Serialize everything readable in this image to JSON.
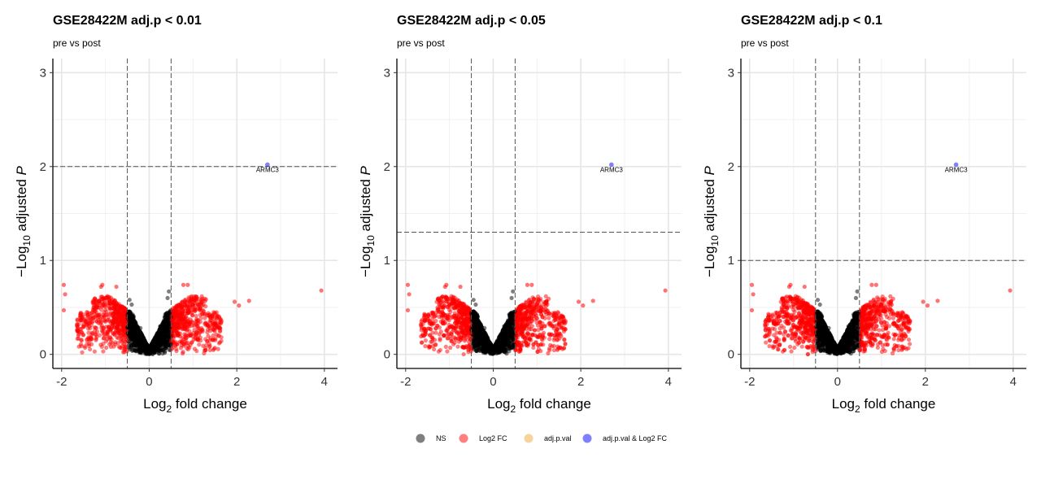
{
  "legend": {
    "items": [
      {
        "label": "NS",
        "color": "#000000"
      },
      {
        "label": "Log2 FC",
        "color": "#ff0000"
      },
      {
        "label": "adj.p.val",
        "color": "#f2a93b"
      },
      {
        "label": "adj.p.val & Log2 FC",
        "color": "#0000ff"
      }
    ]
  },
  "chart_data": [
    {
      "type": "scatter",
      "title": "GSE28422M adj.p < 0.01",
      "subtitle": "pre vs post",
      "xlabel": {
        "prefix": "Log",
        "sub": "2",
        "suffix": " fold change"
      },
      "ylabel": {
        "prefix": "−Log",
        "sub": "10",
        "suffix": " adjusted "
      },
      "ylabel_italic": "P",
      "xlim": [
        -2.2,
        4.3
      ],
      "ylim": [
        -0.15,
        3.15
      ],
      "xticks": [
        "-2",
        "0",
        "2",
        "4"
      ],
      "xtick_values": [
        -2,
        0,
        2,
        4
      ],
      "yticks": [
        "0",
        "1",
        "2",
        "3"
      ],
      "ytick_values": [
        0,
        1,
        2,
        3
      ],
      "fc_cutoff": 0.5,
      "p_cutoff_log10": 2,
      "grid": true,
      "labeled_points": [
        {
          "label": "ARMC3",
          "x": 2.7,
          "y": 2.02,
          "category": "adj.p.val & Log2 FC"
        }
      ],
      "outlier_points": [
        {
          "x": 3.93,
          "y": 0.68,
          "category": "Log2 FC"
        },
        {
          "x": -1.95,
          "y": 0.74,
          "category": "Log2 FC"
        },
        {
          "x": -1.92,
          "y": 0.64,
          "category": "Log2 FC"
        },
        {
          "x": -1.95,
          "y": 0.47,
          "category": "Log2 FC"
        },
        {
          "x": 2.28,
          "y": 0.57,
          "category": "Log2 FC"
        },
        {
          "x": -1.1,
          "y": 0.72,
          "category": "Log2 FC"
        },
        {
          "x": -1.07,
          "y": 0.74,
          "category": "Log2 FC"
        },
        {
          "x": -0.75,
          "y": 0.72,
          "category": "Log2 FC"
        },
        {
          "x": 0.78,
          "y": 0.74,
          "category": "Log2 FC"
        },
        {
          "x": 0.88,
          "y": 0.74,
          "category": "Log2 FC"
        },
        {
          "x": 1.95,
          "y": 0.56,
          "category": "Log2 FC"
        },
        {
          "x": 2.05,
          "y": 0.52,
          "category": "Log2 FC"
        }
      ]
    },
    {
      "type": "scatter",
      "title": "GSE28422M adj.p < 0.05",
      "subtitle": "pre vs post",
      "xlabel": {
        "prefix": "Log",
        "sub": "2",
        "suffix": " fold change"
      },
      "ylabel": {
        "prefix": "−Log",
        "sub": "10",
        "suffix": " adjusted "
      },
      "ylabel_italic": "P",
      "xlim": [
        -2.2,
        4.3
      ],
      "ylim": [
        -0.15,
        3.15
      ],
      "xticks": [
        "-2",
        "0",
        "2",
        "4"
      ],
      "xtick_values": [
        -2,
        0,
        2,
        4
      ],
      "yticks": [
        "0",
        "1",
        "2",
        "3"
      ],
      "ytick_values": [
        0,
        1,
        2,
        3
      ],
      "fc_cutoff": 0.5,
      "p_cutoff_log10": 1.301,
      "grid": true,
      "labeled_points": [
        {
          "label": "ARMC3",
          "x": 2.7,
          "y": 2.02,
          "category": "adj.p.val & Log2 FC"
        }
      ],
      "outlier_points": [
        {
          "x": 3.93,
          "y": 0.68,
          "category": "Log2 FC"
        },
        {
          "x": -1.95,
          "y": 0.74,
          "category": "Log2 FC"
        },
        {
          "x": -1.92,
          "y": 0.64,
          "category": "Log2 FC"
        },
        {
          "x": -1.95,
          "y": 0.47,
          "category": "Log2 FC"
        },
        {
          "x": 2.28,
          "y": 0.57,
          "category": "Log2 FC"
        },
        {
          "x": -1.1,
          "y": 0.72,
          "category": "Log2 FC"
        },
        {
          "x": -1.07,
          "y": 0.74,
          "category": "Log2 FC"
        },
        {
          "x": -0.75,
          "y": 0.72,
          "category": "Log2 FC"
        },
        {
          "x": 0.78,
          "y": 0.74,
          "category": "Log2 FC"
        },
        {
          "x": 0.88,
          "y": 0.74,
          "category": "Log2 FC"
        },
        {
          "x": 1.95,
          "y": 0.56,
          "category": "Log2 FC"
        },
        {
          "x": 2.05,
          "y": 0.52,
          "category": "Log2 FC"
        }
      ]
    },
    {
      "type": "scatter",
      "title": "GSE28422M adj.p < 0.1",
      "subtitle": "pre vs post",
      "xlabel": {
        "prefix": "Log",
        "sub": "2",
        "suffix": " fold change"
      },
      "ylabel": {
        "prefix": "−Log",
        "sub": "10",
        "suffix": " adjusted "
      },
      "ylabel_italic": "P",
      "xlim": [
        -2.2,
        4.3
      ],
      "ylim": [
        -0.15,
        3.15
      ],
      "xticks": [
        "-2",
        "0",
        "2",
        "4"
      ],
      "xtick_values": [
        -2,
        0,
        2,
        4
      ],
      "yticks": [
        "0",
        "1",
        "2",
        "3"
      ],
      "ytick_values": [
        0,
        1,
        2,
        3
      ],
      "fc_cutoff": 0.5,
      "p_cutoff_log10": 1,
      "grid": true,
      "labeled_points": [
        {
          "label": "ARMC3",
          "x": 2.7,
          "y": 2.02,
          "category": "adj.p.val & Log2 FC"
        }
      ],
      "outlier_points": [
        {
          "x": 3.93,
          "y": 0.68,
          "category": "Log2 FC"
        },
        {
          "x": -1.95,
          "y": 0.74,
          "category": "Log2 FC"
        },
        {
          "x": -1.92,
          "y": 0.64,
          "category": "Log2 FC"
        },
        {
          "x": -1.95,
          "y": 0.47,
          "category": "Log2 FC"
        },
        {
          "x": 2.28,
          "y": 0.57,
          "category": "Log2 FC"
        },
        {
          "x": -1.1,
          "y": 0.72,
          "category": "Log2 FC"
        },
        {
          "x": -1.07,
          "y": 0.74,
          "category": "Log2 FC"
        },
        {
          "x": -0.75,
          "y": 0.72,
          "category": "Log2 FC"
        },
        {
          "x": 0.78,
          "y": 0.74,
          "category": "Log2 FC"
        },
        {
          "x": 0.88,
          "y": 0.74,
          "category": "Log2 FC"
        },
        {
          "x": 1.95,
          "y": 0.56,
          "category": "Log2 FC"
        },
        {
          "x": 2.05,
          "y": 0.52,
          "category": "Log2 FC"
        }
      ]
    }
  ]
}
